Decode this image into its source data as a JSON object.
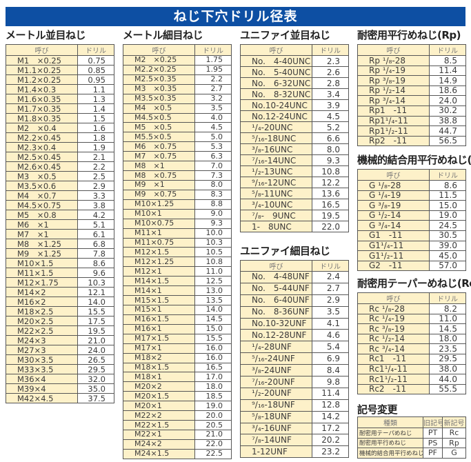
{
  "title": "ねじ下穴ドリル径表",
  "headers": {
    "name": "呼び",
    "drill": "ドリル"
  },
  "sections": [
    {
      "id": "metric-coarse",
      "heading": "メートル並目ねじ",
      "rows": [
        [
          "M1　×0.25",
          "0.75"
        ],
        [
          "M1.1×0.25",
          "0.85"
        ],
        [
          "M1.2×0.25",
          "0.95"
        ],
        [
          "M1.4×0.3",
          "1.1"
        ],
        [
          "M1.6×0.35",
          "1.3"
        ],
        [
          "M1.7×0.35",
          "1.4"
        ],
        [
          "M1.8×0.35",
          "1.5"
        ],
        [
          "M2　×0.4",
          "1.6"
        ],
        [
          "M2.2×0.45",
          "1.8"
        ],
        [
          "M2.3×0.4",
          "1.9"
        ],
        [
          "M2.5×0.45",
          "2.1"
        ],
        [
          "M2.6×0.45",
          "2.2"
        ],
        [
          "M3　×0.5",
          "2.5"
        ],
        [
          "M3.5×0.6",
          "2.9"
        ],
        [
          "M4　×0.7",
          "3.3"
        ],
        [
          "M4.5×0.75",
          "3.8"
        ],
        [
          "M5　×0.8",
          "4.2"
        ],
        [
          "M6　×1",
          "5.1"
        ],
        [
          "M7　×1",
          "6.1"
        ],
        [
          "M8　×1.25",
          "6.8"
        ],
        [
          "M9　×1.25",
          "7.8"
        ],
        [
          "M10×1.5",
          "8.6"
        ],
        [
          "M11×1.5",
          "9.6"
        ],
        [
          "M12×1.75",
          "10.3"
        ],
        [
          "M14×2",
          "12.1"
        ],
        [
          "M16×2",
          "14.0"
        ],
        [
          "M18×2.5",
          "15.5"
        ],
        [
          "M20×2.5",
          "17.5"
        ],
        [
          "M22×2.5",
          "19.5"
        ],
        [
          "M24×3",
          "21.0"
        ],
        [
          "M27×3",
          "24.0"
        ],
        [
          "M30×3.5",
          "26.5"
        ],
        [
          "M33×3.5",
          "29.5"
        ],
        [
          "M36×4",
          "32.0"
        ],
        [
          "M39×4",
          "35.0"
        ],
        [
          "M42×4.5",
          "37.5"
        ]
      ]
    },
    {
      "id": "metric-fine",
      "heading": "メートル細目ねじ",
      "rows": [
        [
          "M2　×0.25",
          "1.75"
        ],
        [
          "M2.2×0.25",
          "1.95"
        ],
        [
          "M2.5×0.35",
          "2.2"
        ],
        [
          "M3　×0.35",
          "2.7"
        ],
        [
          "M3.5×0.35",
          "3.2"
        ],
        [
          "M4　×0.5",
          "3.5"
        ],
        [
          "M4.5×0.5",
          "4.0"
        ],
        [
          "M5　×0.5",
          "4.5"
        ],
        [
          "M5.5×0.5",
          "5.0"
        ],
        [
          "M6　×0.75",
          "5.3"
        ],
        [
          "M7　×0.75",
          "6.3"
        ],
        [
          "M8　×1",
          "7.0"
        ],
        [
          "M8　×0.75",
          "7.3"
        ],
        [
          "M9　×1",
          "8.0"
        ],
        [
          "M9　×0.75",
          "8.3"
        ],
        [
          "M10×1.25",
          "8.8"
        ],
        [
          "M10×1",
          "9.0"
        ],
        [
          "M10×0.75",
          "9.3"
        ],
        [
          "M11×1",
          "10.0"
        ],
        [
          "M11×0.75",
          "10.3"
        ],
        [
          "M12×1.5",
          "10.5"
        ],
        [
          "M12×1.25",
          "10.8"
        ],
        [
          "M12×1",
          "11.0"
        ],
        [
          "M14×1.5",
          "12.5"
        ],
        [
          "M14×1",
          "13.0"
        ],
        [
          "M15×1.5",
          "13.5"
        ],
        [
          "M15×1",
          "14.0"
        ],
        [
          "M16×1.5",
          "14.5"
        ],
        [
          "M16×1",
          "15.0"
        ],
        [
          "M17×1.5",
          "15.5"
        ],
        [
          "M17×1",
          "16.0"
        ],
        [
          "M18×2",
          "16.0"
        ],
        [
          "M18×1.5",
          "16.5"
        ],
        [
          "M18×1",
          "17.0"
        ],
        [
          "M20×2",
          "18.0"
        ],
        [
          "M20×1.5",
          "18.5"
        ],
        [
          "M20×1",
          "19.0"
        ],
        [
          "M22×2",
          "20.0"
        ],
        [
          "M22×1.5",
          "20.5"
        ],
        [
          "M22×1",
          "21.0"
        ],
        [
          "M24×2",
          "22.0"
        ],
        [
          "M24×1.5",
          "22.5"
        ]
      ]
    },
    {
      "id": "unc",
      "heading": "ユニファイ並目ねじ",
      "rows": [
        [
          "No.　4-40UNC",
          "2.3"
        ],
        [
          "No.　5-40UNC",
          "2.6"
        ],
        [
          "No.　6-32UNC",
          "2.8"
        ],
        [
          "No.　8-32UNC",
          "3.4"
        ],
        [
          "No.10-24UNC",
          "3.9"
        ],
        [
          "No.12-24UNC",
          "4.5"
        ],
        [
          "¹/₄-20UNC",
          "5.2"
        ],
        [
          "⁵/₁₆-18UNC",
          "6.6"
        ],
        [
          "³/₈-16UNC",
          "8.0"
        ],
        [
          "⁷/₁₆-14UNC",
          "9.3"
        ],
        [
          "¹/₂-13UNC",
          "10.8"
        ],
        [
          "⁹/₁₆-12UNC",
          "12.2"
        ],
        [
          "⁵/₈-11UNC",
          "13.6"
        ],
        [
          "³/₄-10UNC",
          "16.5"
        ],
        [
          "⁷/₈-　9UNC",
          "19.5"
        ],
        [
          "1-　8UNC",
          "22.0"
        ]
      ]
    },
    {
      "id": "unf",
      "heading": "ユニファイ細目ねじ",
      "rows": [
        [
          "No.　4-48UNF",
          "2.4"
        ],
        [
          "No.　5-44UNF",
          "2.7"
        ],
        [
          "No.　6-40UNF",
          "2.9"
        ],
        [
          "No.　8-36UNF",
          "3.5"
        ],
        [
          "No.10-32UNF",
          "4.1"
        ],
        [
          "No.12-28UNF",
          "4.6"
        ],
        [
          "¹/₄-28UNF",
          "5.4"
        ],
        [
          "⁵/₁₆-24UNF",
          "6.9"
        ],
        [
          "³/₈-24UNF",
          "8.4"
        ],
        [
          "⁷/₁₆-20UNF",
          "9.8"
        ],
        [
          "¹/₂-20UNF",
          "11.4"
        ],
        [
          "⁹/₁₆-18UNF",
          "12.8"
        ],
        [
          "⁵/₈-18UNF",
          "14.2"
        ],
        [
          "³/₄-16UNF",
          "17.2"
        ],
        [
          "⁷/₈-14UNF",
          "20.2"
        ],
        [
          "1-12UNF",
          "23.2"
        ]
      ]
    },
    {
      "id": "rp",
      "heading": "耐密用平行めねじ(Rp)",
      "rows": [
        [
          "Rp ¹/₈-28",
          "8.5"
        ],
        [
          "Rp ¹/₄-19",
          "11.4"
        ],
        [
          "Rp ³/₈-19",
          "14.9"
        ],
        [
          "Rp ¹/₂-14",
          "18.6"
        ],
        [
          "Rp ³/₄-14",
          "24.0"
        ],
        [
          "Rp1　-11",
          "30.2"
        ],
        [
          "Rp1¹/₄-11",
          "38.8"
        ],
        [
          "Rp1¹/₂-11",
          "44.7"
        ],
        [
          "Rp2　-11",
          "56.5"
        ]
      ]
    },
    {
      "id": "g",
      "heading": "機械的結合用平行めねじ(G)",
      "rows": [
        [
          "G ¹/₈-28",
          "8.6"
        ],
        [
          "G ¹/₄-19",
          "11.5"
        ],
        [
          "G ³/₈-19",
          "15.0"
        ],
        [
          "G ¹/₂-14",
          "19.0"
        ],
        [
          "G ³/₄-14",
          "24.5"
        ],
        [
          "G1　-11",
          "30.5"
        ],
        [
          "G1¹/₄-11",
          "39.0"
        ],
        [
          "G1¹/₂-11",
          "45.0"
        ],
        [
          "G2　-11",
          "57.0"
        ]
      ]
    },
    {
      "id": "rc",
      "heading": "耐密用テーパーめねじ(Rc)",
      "rows": [
        [
          "Rc ¹/₈-28",
          "8.2"
        ],
        [
          "Rc ¹/₄-19",
          "11.0"
        ],
        [
          "Rc ³/₈-19",
          "14.5"
        ],
        [
          "Rc ¹/₂-14",
          "18.0"
        ],
        [
          "Rc ³/₄-14",
          "23.5"
        ],
        [
          "Rc1　-11",
          "29.5"
        ],
        [
          "Rc1¹/₄-11",
          "38.0"
        ],
        [
          "Rc1¹/₂-11",
          "44.0"
        ],
        [
          "Rc2　-11",
          "55.5"
        ]
      ]
    }
  ],
  "symbol_change": {
    "heading": "記号変更",
    "headers": [
      "種類",
      "旧記号",
      "新記号"
    ],
    "rows": [
      [
        "耐密用テーパめねじ",
        "PT",
        "Rc"
      ],
      [
        "耐密用平行めねじ",
        "PS",
        "Rp"
      ],
      [
        "機械的結合用平行めねじ",
        "PF",
        "G"
      ]
    ]
  }
}
